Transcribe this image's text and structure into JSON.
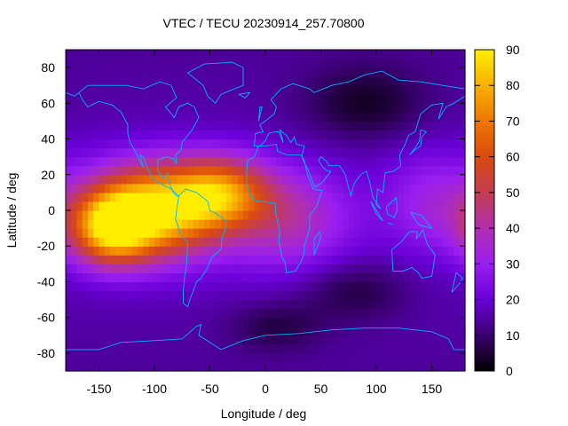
{
  "chart_data": {
    "type": "heatmap",
    "title": "VTEC / TECU 20230914_257.70800",
    "xlabel": "Longitude / deg",
    "ylabel": "Latitude / deg",
    "xlim": [
      -180,
      180
    ],
    "ylim": [
      -90,
      90
    ],
    "xticks": [
      -150,
      -100,
      -50,
      0,
      50,
      100,
      150
    ],
    "yticks": [
      -80,
      -60,
      -40,
      -20,
      0,
      20,
      40,
      60,
      80
    ],
    "colorbar": {
      "range": [
        0,
        90
      ],
      "ticks": [
        0,
        10,
        20,
        30,
        40,
        50,
        60,
        70,
        80,
        90
      ],
      "colormap": [
        "#000000",
        "#3a0070",
        "#6a00d8",
        "#9a1ef0",
        "#b02fb0",
        "#c43c50",
        "#d94a10",
        "#ee7700",
        "#f7b000",
        "#ffee00"
      ]
    },
    "grid_resolution_deg": 5,
    "enhancements": [
      {
        "lon": -100,
        "lat": 0,
        "vtec": 88,
        "sigma_lon": 40,
        "sigma_lat": 18
      },
      {
        "lon": -140,
        "lat": -10,
        "vtec": 72,
        "sigma_lon": 25,
        "sigma_lat": 14
      },
      {
        "lon": -40,
        "lat": 10,
        "vtec": 65,
        "sigma_lon": 30,
        "sigma_lat": 14
      },
      {
        "lon": 20,
        "lat": -5,
        "vtec": 40,
        "sigma_lon": 40,
        "sigma_lat": 20
      },
      {
        "lon": 150,
        "lat": 5,
        "vtec": 32,
        "sigma_lon": 30,
        "sigma_lat": 20
      }
    ],
    "background_vtec": 18,
    "polar_vtec": 14,
    "depletions": [
      {
        "lon": 90,
        "lat": 60,
        "vtec": 6,
        "sigma_lon": 40,
        "sigma_lat": 15
      },
      {
        "lon": 80,
        "lat": -45,
        "vtec": 8,
        "sigma_lon": 35,
        "sigma_lat": 12
      },
      {
        "lon": 10,
        "lat": -65,
        "vtec": 9,
        "sigma_lon": 30,
        "sigma_lat": 10
      }
    ],
    "coastline_color": "#00b4ff"
  }
}
